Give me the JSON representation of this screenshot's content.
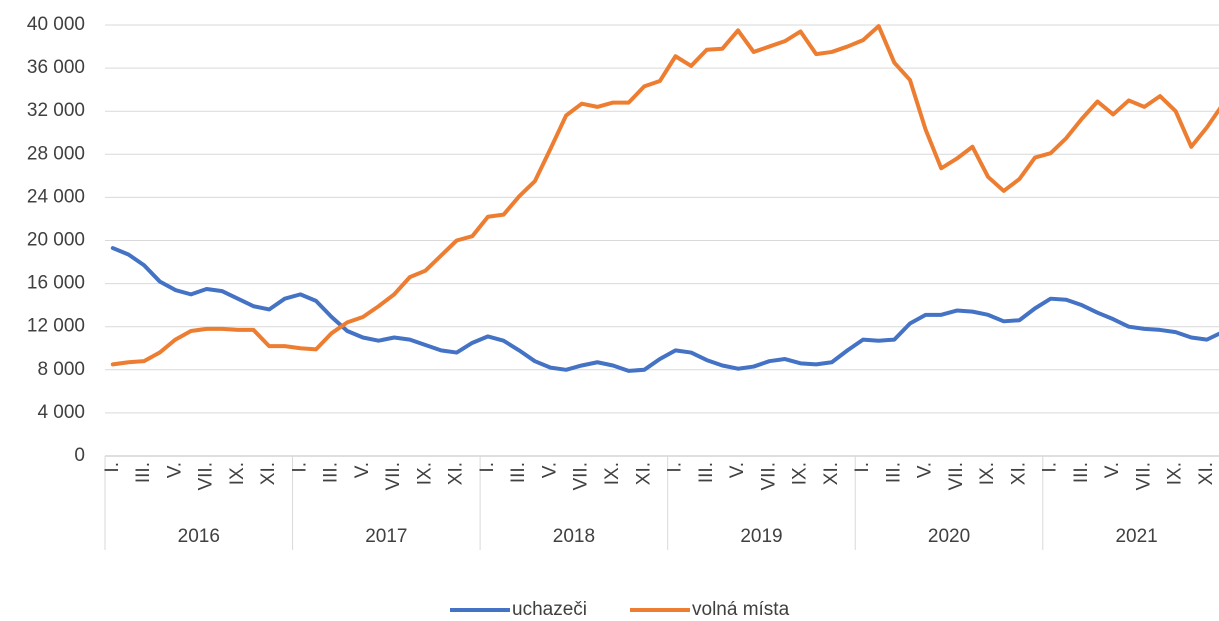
{
  "chart_data": {
    "type": "line",
    "categories": [
      "I.",
      null,
      "III.",
      null,
      "V.",
      null,
      "VII.",
      null,
      "IX.",
      null,
      "XI.",
      null,
      "I.",
      null,
      "III.",
      null,
      "V.",
      null,
      "VII.",
      null,
      "IX.",
      null,
      "XI.",
      null,
      "I.",
      null,
      "III.",
      null,
      "V.",
      null,
      "VII.",
      null,
      "IX.",
      null,
      "XI.",
      null,
      "I.",
      null,
      "III.",
      null,
      "V.",
      null,
      "VII.",
      null,
      "IX.",
      null,
      "XI.",
      null,
      "I.",
      null,
      "III.",
      null,
      "V.",
      null,
      "VII.",
      null,
      "IX.",
      null,
      "XI.",
      null,
      "I.",
      null,
      "III.",
      null,
      "V.",
      null,
      "VII.",
      null,
      "IX.",
      null,
      "XI.",
      null
    ],
    "year_groups": [
      "2016",
      "2017",
      "2018",
      "2019",
      "2020",
      "2021"
    ],
    "series": [
      {
        "name": "uchazeči",
        "color": "#4472c4",
        "values": [
          19300,
          18700,
          17700,
          16200,
          15400,
          15000,
          15500,
          15300,
          14600,
          13900,
          13600,
          14600,
          15000,
          14400,
          12900,
          11600,
          11000,
          10700,
          11000,
          10800,
          10300,
          9800,
          9600,
          10500,
          11100,
          10700,
          9800,
          8800,
          8200,
          8000,
          8400,
          8700,
          8400,
          7900,
          8000,
          9000,
          9800,
          9600,
          8900,
          8400,
          8100,
          8300,
          8800,
          9000,
          8600,
          8500,
          8700,
          9800,
          10800,
          10700,
          10800,
          12300,
          13100,
          13100,
          13500,
          13400,
          13100,
          12500,
          12600,
          13700,
          14600,
          14500,
          14000,
          13300,
          12700,
          12000,
          11800,
          11700,
          11500,
          11000,
          10800,
          11500
        ]
      },
      {
        "name": "volná místa",
        "color": "#ed7d31",
        "values": [
          8500,
          8700,
          8800,
          9600,
          10800,
          11600,
          11800,
          11800,
          11700,
          11700,
          10200,
          10200,
          10000,
          9900,
          11400,
          12400,
          12900,
          13900,
          15000,
          16600,
          17200,
          18600,
          20000,
          20400,
          22200,
          22400,
          24100,
          25500,
          28500,
          31600,
          32700,
          32400,
          32800,
          32800,
          34300,
          34800,
          37100,
          36200,
          37700,
          37800,
          39500,
          37500,
          38000,
          38500,
          39400,
          37300,
          37500,
          38000,
          38600,
          39900,
          36500,
          34900,
          30300,
          26700,
          27600,
          28700,
          25900,
          24600,
          25700,
          27700,
          28100,
          29500,
          31300,
          32900,
          31700,
          33000,
          32400,
          33400,
          32000,
          28700,
          30500,
          32600
        ]
      }
    ],
    "ylim": [
      0,
      40000
    ],
    "yticks": [
      0,
      {
        "value": 4000,
        "label": "4 000"
      },
      {
        "value": 8000,
        "label": "8 000"
      },
      {
        "value": 12000,
        "label": "12 000"
      },
      {
        "value": 16000,
        "label": "16 000"
      },
      {
        "value": 20000,
        "label": "20 000"
      },
      {
        "value": 24000,
        "label": "24 000"
      },
      {
        "value": 28000,
        "label": "28 000"
      },
      {
        "value": 32000,
        "label": "32 000"
      },
      {
        "value": 36000,
        "label": "36 000"
      },
      {
        "value": 40000,
        "label": "40 000"
      }
    ],
    "grid": true
  }
}
